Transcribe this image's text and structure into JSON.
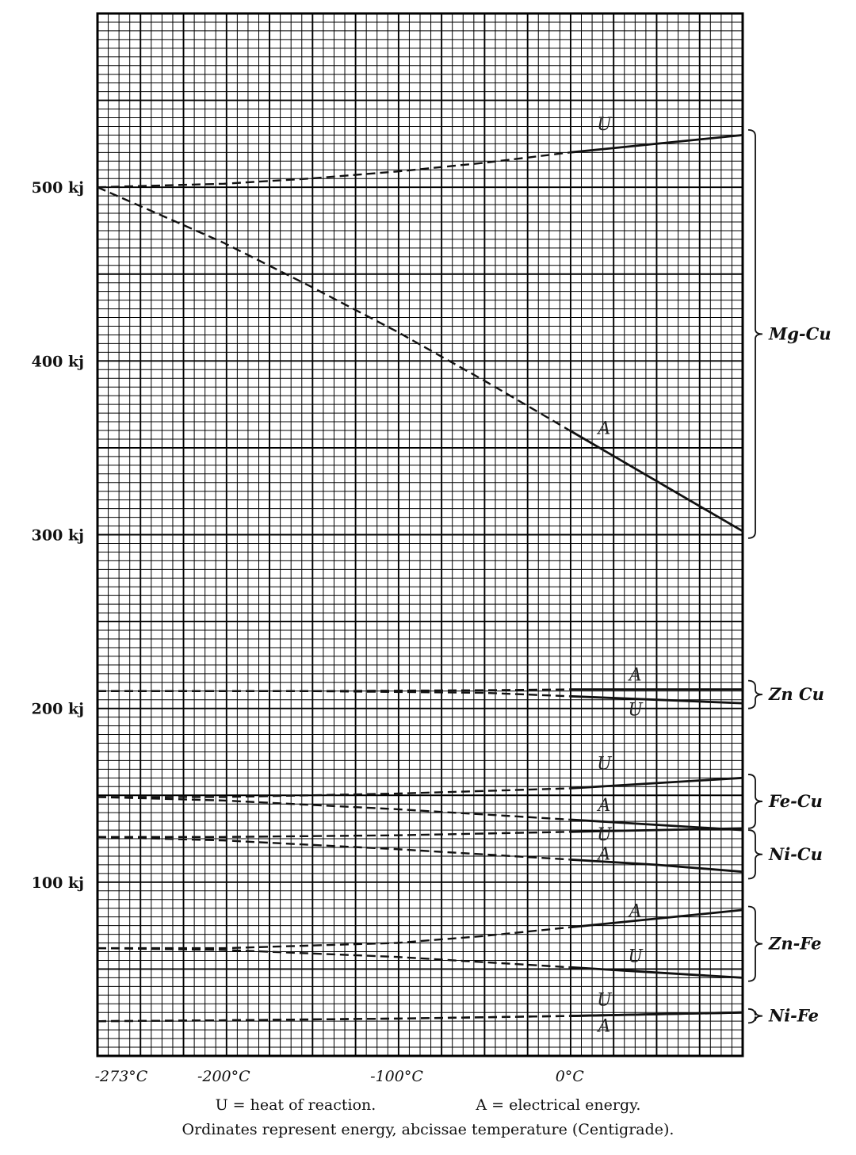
{
  "chart_data": {
    "type": "line",
    "title": "",
    "xlabel": "",
    "ylabel": "",
    "xlim": [
      -273,
      100
    ],
    "ylim": [
      0,
      600
    ],
    "x_ticks": [
      {
        "value": -273,
        "label": "-273°C"
      },
      {
        "value": -200,
        "label": "-200°C"
      },
      {
        "value": -100,
        "label": "-100°C"
      },
      {
        "value": 0,
        "label": "0°C"
      }
    ],
    "y_ticks": [
      {
        "value": 500,
        "label": "500 kj"
      },
      {
        "value": 400,
        "label": "400 kj"
      },
      {
        "value": 300,
        "label": "300 kj"
      },
      {
        "value": 200,
        "label": "200 kj"
      },
      {
        "value": 100,
        "label": "100 kj"
      }
    ],
    "grid": true,
    "solid_from_x": 0,
    "series": [
      {
        "group": "Mg-Cu",
        "name": "U",
        "label": {
          "text": "U",
          "x": 20,
          "y": 533
        },
        "x": [
          -273,
          -200,
          -150,
          -100,
          -50,
          0,
          50,
          100
        ],
        "y": [
          500,
          502,
          505,
          509,
          514,
          520,
          525,
          530
        ]
      },
      {
        "group": "Mg-Cu",
        "name": "A",
        "label": {
          "text": "A",
          "x": 20,
          "y": 358
        },
        "x": [
          -273,
          -200,
          -150,
          -100,
          -50,
          0,
          50,
          100
        ],
        "y": [
          500,
          468,
          443,
          417,
          389,
          360,
          331,
          302
        ]
      },
      {
        "group": "Zn-Cu",
        "name": "A",
        "label": {
          "text": "A",
          "x": 38,
          "y": 216
        },
        "x": [
          -273,
          -150,
          -50,
          0,
          50,
          100
        ],
        "y": [
          210,
          210,
          210.5,
          211,
          211,
          211
        ]
      },
      {
        "group": "Zn-Cu",
        "name": "U",
        "label": {
          "text": "U",
          "x": 38,
          "y": 196
        },
        "x": [
          -273,
          -150,
          -50,
          0,
          50,
          100
        ],
        "y": [
          210,
          210,
          209,
          207,
          205,
          203
        ]
      },
      {
        "group": "Fe-Cu",
        "name": "U",
        "label": {
          "text": "U",
          "x": 20,
          "y": 165
        },
        "x": [
          -273,
          -200,
          -100,
          0,
          50,
          100
        ],
        "y": [
          149,
          149,
          151,
          154,
          157,
          160
        ]
      },
      {
        "group": "Fe-Cu",
        "name": "A",
        "label": {
          "text": "A",
          "x": 20,
          "y": 141
        },
        "x": [
          -273,
          -200,
          -100,
          0,
          50,
          100
        ],
        "y": [
          149,
          147,
          142,
          136,
          133,
          130
        ]
      },
      {
        "group": "Ni-Cu",
        "name": "U",
        "label": {
          "text": "U",
          "x": 20,
          "y": 124
        },
        "x": [
          -273,
          -200,
          -100,
          0,
          50,
          100
        ],
        "y": [
          126,
          126,
          127,
          129,
          130,
          131
        ]
      },
      {
        "group": "Ni-Cu",
        "name": "A",
        "label": {
          "text": "A",
          "x": 20,
          "y": 113
        },
        "x": [
          -273,
          -200,
          -100,
          0,
          50,
          100
        ],
        "y": [
          126,
          124,
          119,
          113,
          110,
          106
        ]
      },
      {
        "group": "Zn-Fe",
        "name": "A",
        "label": {
          "text": "A",
          "x": 38,
          "y": 80
        },
        "x": [
          -273,
          -200,
          -100,
          -50,
          0,
          50,
          100
        ],
        "y": [
          62,
          62,
          65,
          69,
          74,
          79,
          84
        ]
      },
      {
        "group": "Zn-Fe",
        "name": "U",
        "label": {
          "text": "U",
          "x": 38,
          "y": 54
        },
        "x": [
          -273,
          -200,
          -100,
          -50,
          0,
          50,
          100
        ],
        "y": [
          62,
          61,
          57,
          54,
          51,
          48,
          45
        ]
      },
      {
        "group": "Ni-Fe",
        "name": "U",
        "label": {
          "text": "U",
          "x": 20,
          "y": 29
        },
        "x": [
          -273,
          -200,
          -100,
          0,
          50,
          100
        ],
        "y": [
          20,
          20.5,
          21.5,
          23,
          24,
          25
        ]
      },
      {
        "group": "Ni-Fe",
        "name": "A",
        "label": {
          "text": "A",
          "x": 20,
          "y": 14
        },
        "x": [
          -273,
          -200,
          -100,
          0,
          50,
          100
        ],
        "y": [
          20,
          20.5,
          21.5,
          23,
          24,
          25
        ]
      }
    ],
    "groups": [
      {
        "name": "Mg-Cu",
        "y_top": 533,
        "y_bottom": 298
      },
      {
        "name": "Zn Cu",
        "y_top": 216,
        "y_bottom": 200
      },
      {
        "name": "Fe-Cu",
        "y_top": 162,
        "y_bottom": 131
      },
      {
        "name": "Ni-Cu",
        "y_top": 130,
        "y_bottom": 102
      },
      {
        "name": "Zn-Fe",
        "y_top": 86,
        "y_bottom": 43
      },
      {
        "name": "Ni-Fe",
        "y_top": 27,
        "y_bottom": 19
      }
    ]
  },
  "caption": {
    "legend_u": "U = heat of reaction.",
    "legend_a": "A = electrical energy.",
    "note": "Ordinates represent energy, abcissae temperature (Centigrade)."
  }
}
